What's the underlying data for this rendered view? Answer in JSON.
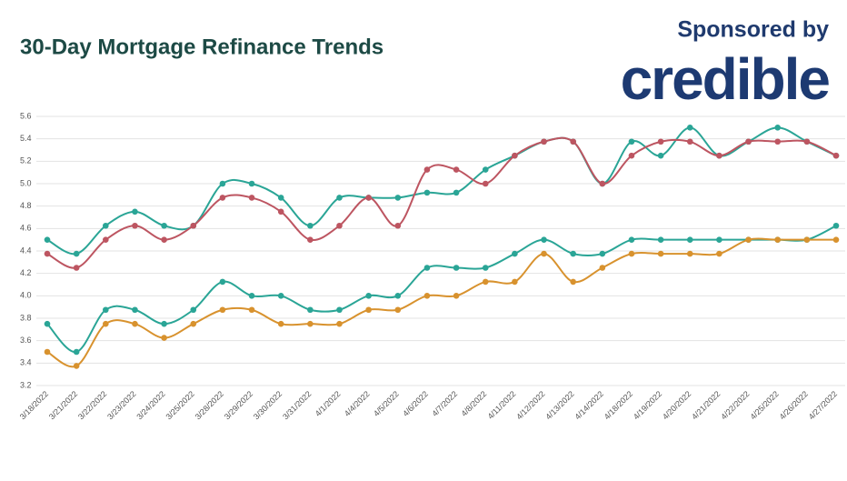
{
  "sponsor": {
    "text": "Sponsored by",
    "logo": "credible"
  },
  "chart_data": {
    "type": "line",
    "title": "30-Day Mortgage Refinance Trends",
    "categories": [
      "3/18/2022",
      "3/21/2022",
      "3/22/2022",
      "3/23/2022",
      "3/24/2022",
      "3/25/2022",
      "3/28/2022",
      "3/29/2022",
      "3/30/2022",
      "3/31/2022",
      "4/1/2022",
      "4/4/2022",
      "4/5/2022",
      "4/6/2022",
      "4/7/2022",
      "4/8/2022",
      "4/11/2022",
      "4/12/2022",
      "4/13/2022",
      "4/14/2022",
      "4/18/2022",
      "4/19/2022",
      "4/20/2022",
      "4/21/2022",
      "4/22/2022",
      "4/25/2022",
      "4/26/2022",
      "4/27/2022"
    ],
    "series": [
      {
        "color": "#2aa596",
        "values": [
          4.5,
          4.375,
          4.625,
          4.75,
          4.625,
          4.625,
          5.0,
          5.0,
          4.875,
          4.625,
          4.875,
          4.875,
          4.875,
          4.92,
          4.92,
          5.125,
          5.25,
          5.375,
          5.375,
          5.0,
          5.375,
          5.25,
          5.5,
          5.25,
          5.375,
          5.5,
          5.375,
          5.25
        ]
      },
      {
        "color": "#bd5561",
        "values": [
          4.375,
          4.25,
          4.5,
          4.625,
          4.5,
          4.625,
          4.875,
          4.875,
          4.75,
          4.5,
          4.625,
          4.875,
          4.625,
          5.125,
          5.125,
          5.0,
          5.25,
          5.375,
          5.375,
          5.0,
          5.25,
          5.375,
          5.375,
          5.25,
          5.375,
          5.375,
          5.375,
          5.25
        ]
      },
      {
        "color": "#2aa596",
        "values": [
          3.75,
          3.5,
          3.875,
          3.875,
          3.75,
          3.875,
          4.125,
          4.0,
          4.0,
          3.875,
          3.875,
          4.0,
          4.0,
          4.25,
          4.25,
          4.25,
          4.375,
          4.5,
          4.375,
          4.375,
          4.5,
          4.5,
          4.5,
          4.5,
          4.5,
          4.5,
          4.5,
          4.625
        ]
      },
      {
        "color": "#d8922e",
        "values": [
          3.5,
          3.375,
          3.75,
          3.75,
          3.625,
          3.75,
          3.875,
          3.875,
          3.75,
          3.75,
          3.75,
          3.875,
          3.875,
          4.0,
          4.0,
          4.125,
          4.125,
          4.375,
          4.125,
          4.25,
          4.375,
          4.375,
          4.375,
          4.375,
          4.5,
          4.5,
          4.5,
          4.5
        ]
      }
    ],
    "ylim": [
      3.2,
      5.6
    ],
    "yticks": [
      3.2,
      3.4,
      3.6,
      3.8,
      {
        "value": 4,
        "label": "4.0"
      },
      4.2,
      4.4,
      4.6,
      4.8,
      {
        "value": 5,
        "label": "5.0"
      },
      5.2,
      5.4,
      5.6
    ],
    "grid": true
  }
}
